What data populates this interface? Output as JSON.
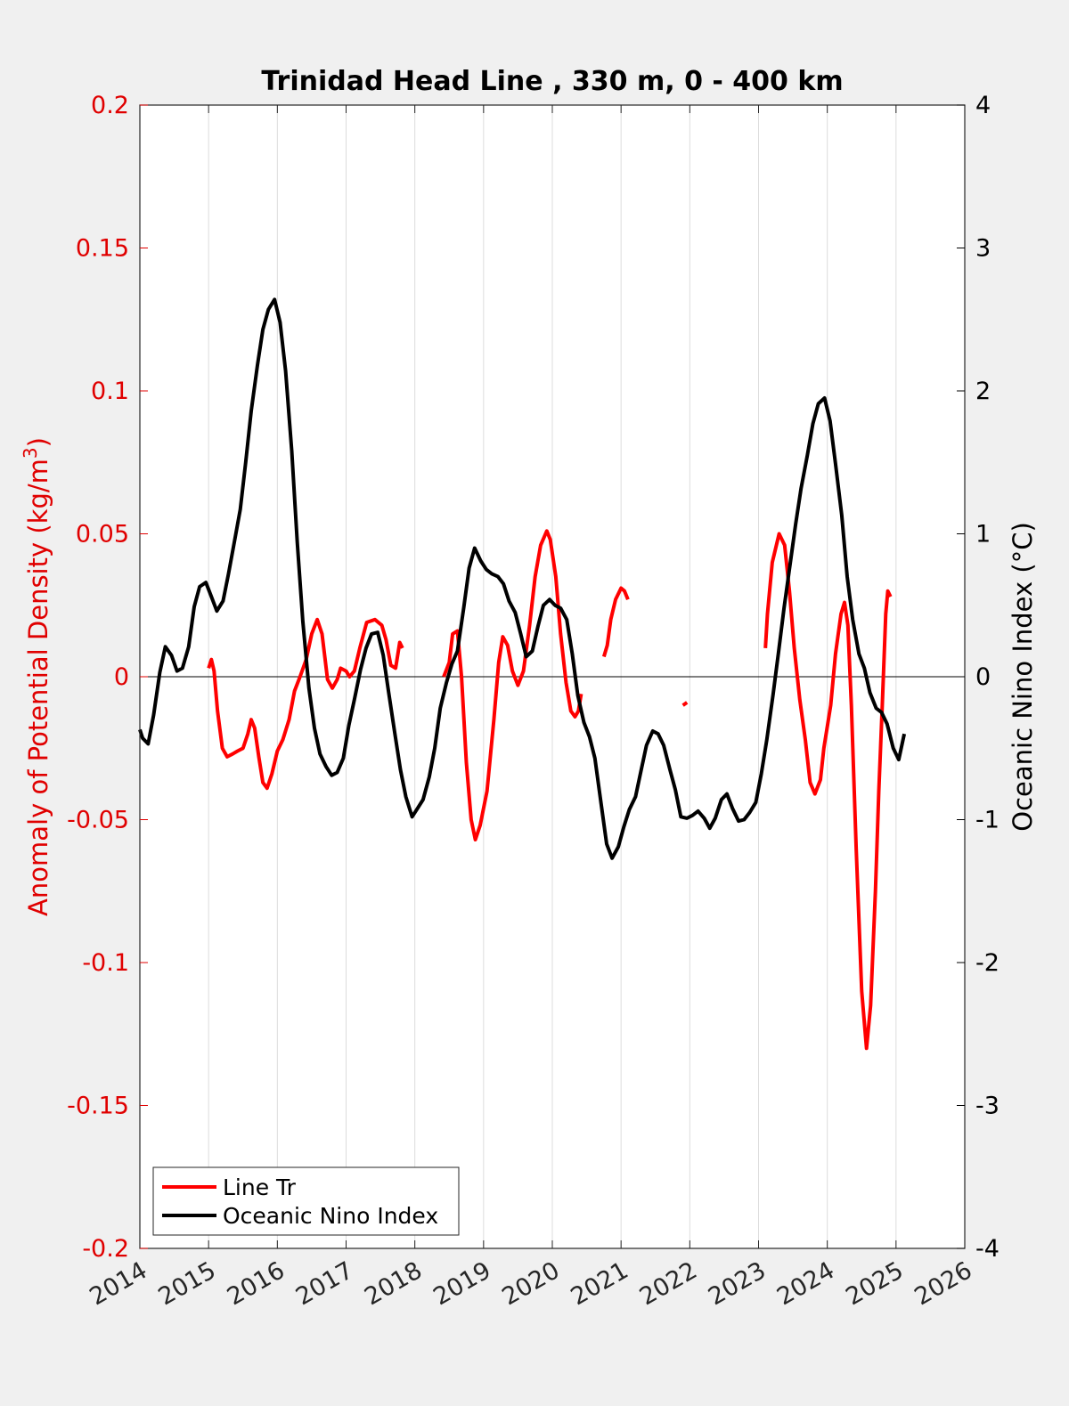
{
  "chart_data": {
    "type": "line",
    "title": "Trinidad Head Line , 330 m, 0 - 400 km",
    "xlabel": "",
    "ylabel_left": "Anomaly of Potential Density (kg/m",
    "ylabel_left_sup": "3",
    "ylabel_left_close": ")",
    "ylabel_right": "Oceanic Nino Index (°C)",
    "xlim": [
      2014,
      2026
    ],
    "ylim_left": [
      -0.2,
      0.2
    ],
    "ylim_right": [
      -4,
      4
    ],
    "x_ticks": [
      "2014",
      "2015",
      "2016",
      "2017",
      "2018",
      "2019",
      "2020",
      "2021",
      "2022",
      "2023",
      "2024",
      "2025",
      "2026"
    ],
    "y_ticks_left": [
      "0.2",
      "0.15",
      "0.1",
      "0.05",
      "0",
      "-0.05",
      "-0.1",
      "-0.15",
      "-0.2"
    ],
    "y_ticks_right": [
      "4",
      "3",
      "2",
      "1",
      "0",
      "-1",
      "-2",
      "-3",
      "-4"
    ],
    "grid": "vertical",
    "legend_position": "bottom-left",
    "colors": {
      "line_tr": "#ff0000",
      "oni": "#000000",
      "left_axis": "#e00000",
      "right_axis": "#000000"
    },
    "series": [
      {
        "name": "Line Tr",
        "axis": "left",
        "segments": [
          [
            [
              2015.0,
              0.003
            ],
            [
              2015.04,
              0.006
            ],
            [
              2015.08,
              0.002
            ],
            [
              2015.13,
              -0.012
            ],
            [
              2015.2,
              -0.025
            ],
            [
              2015.27,
              -0.028
            ],
            [
              2015.35,
              -0.027
            ],
            [
              2015.42,
              -0.026
            ],
            [
              2015.5,
              -0.025
            ],
            [
              2015.57,
              -0.02
            ],
            [
              2015.62,
              -0.015
            ],
            [
              2015.67,
              -0.018
            ],
            [
              2015.73,
              -0.028
            ],
            [
              2015.79,
              -0.037
            ],
            [
              2015.85,
              -0.039
            ],
            [
              2015.92,
              -0.034
            ],
            [
              2016.0,
              -0.026
            ],
            [
              2016.08,
              -0.022
            ],
            [
              2016.17,
              -0.015
            ],
            [
              2016.25,
              -0.005
            ],
            [
              2016.33,
              0.0
            ],
            [
              2016.42,
              0.006
            ],
            [
              2016.5,
              0.015
            ],
            [
              2016.58,
              0.02
            ],
            [
              2016.65,
              0.015
            ],
            [
              2016.73,
              -0.001
            ],
            [
              2016.8,
              -0.004
            ],
            [
              2016.87,
              -0.001
            ],
            [
              2016.92,
              0.003
            ],
            [
              2017.0,
              0.002
            ],
            [
              2017.05,
              0.0
            ],
            [
              2017.12,
              0.002
            ],
            [
              2017.2,
              0.01
            ],
            [
              2017.3,
              0.019
            ],
            [
              2017.42,
              0.02
            ],
            [
              2017.52,
              0.018
            ],
            [
              2017.58,
              0.013
            ],
            [
              2017.65,
              0.004
            ],
            [
              2017.72,
              0.003
            ],
            [
              2017.78,
              0.012
            ],
            [
              2017.82,
              0.01
            ]
          ],
          [
            [
              2018.42,
              0.0
            ],
            [
              2018.5,
              0.005
            ],
            [
              2018.55,
              0.015
            ],
            [
              2018.62,
              0.016
            ],
            [
              2018.68,
              0.0
            ],
            [
              2018.75,
              -0.03
            ],
            [
              2018.82,
              -0.05
            ],
            [
              2018.88,
              -0.057
            ],
            [
              2018.95,
              -0.052
            ],
            [
              2019.05,
              -0.04
            ],
            [
              2019.15,
              -0.015
            ],
            [
              2019.22,
              0.005
            ],
            [
              2019.28,
              0.014
            ],
            [
              2019.35,
              0.011
            ],
            [
              2019.42,
              0.002
            ],
            [
              2019.5,
              -0.003
            ],
            [
              2019.58,
              0.002
            ],
            [
              2019.67,
              0.018
            ],
            [
              2019.75,
              0.035
            ],
            [
              2019.83,
              0.046
            ],
            [
              2019.92,
              0.051
            ],
            [
              2019.97,
              0.048
            ],
            [
              2020.05,
              0.035
            ],
            [
              2020.12,
              0.015
            ],
            [
              2020.2,
              -0.002
            ],
            [
              2020.27,
              -0.012
            ],
            [
              2020.33,
              -0.014
            ],
            [
              2020.38,
              -0.012
            ],
            [
              2020.42,
              -0.006
            ]
          ],
          [
            [
              2020.75,
              0.007
            ],
            [
              2020.8,
              0.011
            ],
            [
              2020.85,
              0.02
            ],
            [
              2020.92,
              0.027
            ],
            [
              2021.0,
              0.031
            ],
            [
              2021.05,
              0.03
            ],
            [
              2021.1,
              0.027
            ]
          ],
          [
            [
              2021.9,
              -0.01
            ],
            [
              2021.96,
              -0.009
            ]
          ],
          [
            [
              2023.1,
              0.01
            ],
            [
              2023.13,
              0.022
            ],
            [
              2023.2,
              0.04
            ],
            [
              2023.3,
              0.05
            ],
            [
              2023.38,
              0.046
            ],
            [
              2023.45,
              0.03
            ],
            [
              2023.52,
              0.01
            ],
            [
              2023.6,
              -0.008
            ],
            [
              2023.68,
              -0.022
            ],
            [
              2023.75,
              -0.037
            ],
            [
              2023.82,
              -0.041
            ],
            [
              2023.9,
              -0.036
            ],
            [
              2023.95,
              -0.025
            ],
            [
              2024.05,
              -0.01
            ],
            [
              2024.12,
              0.008
            ],
            [
              2024.2,
              0.022
            ],
            [
              2024.25,
              0.026
            ],
            [
              2024.3,
              0.018
            ],
            [
              2024.35,
              -0.01
            ],
            [
              2024.42,
              -0.06
            ],
            [
              2024.5,
              -0.11
            ],
            [
              2024.57,
              -0.13
            ],
            [
              2024.63,
              -0.115
            ],
            [
              2024.7,
              -0.075
            ],
            [
              2024.75,
              -0.04
            ],
            [
              2024.8,
              -0.01
            ],
            [
              2024.85,
              0.022
            ],
            [
              2024.88,
              0.03
            ],
            [
              2024.92,
              0.028
            ]
          ]
        ]
      },
      {
        "name": "Oceanic Nino Index",
        "axis": "right",
        "segments": [
          [
            [
              2014.0,
              -0.37
            ],
            [
              2014.04,
              -0.43
            ],
            [
              2014.12,
              -0.47
            ],
            [
              2014.2,
              -0.27
            ],
            [
              2014.29,
              0.03
            ],
            [
              2014.37,
              0.21
            ],
            [
              2014.46,
              0.15
            ],
            [
              2014.54,
              0.04
            ],
            [
              2014.62,
              0.06
            ],
            [
              2014.71,
              0.21
            ],
            [
              2014.79,
              0.49
            ],
            [
              2014.87,
              0.63
            ],
            [
              2014.96,
              0.66
            ],
            [
              2015.04,
              0.56
            ],
            [
              2015.12,
              0.46
            ],
            [
              2015.21,
              0.53
            ],
            [
              2015.29,
              0.72
            ],
            [
              2015.37,
              0.93
            ],
            [
              2015.46,
              1.17
            ],
            [
              2015.54,
              1.5
            ],
            [
              2015.62,
              1.86
            ],
            [
              2015.71,
              2.18
            ],
            [
              2015.79,
              2.43
            ],
            [
              2015.87,
              2.57
            ],
            [
              2015.96,
              2.64
            ],
            [
              2016.04,
              2.48
            ],
            [
              2016.12,
              2.14
            ],
            [
              2016.21,
              1.58
            ],
            [
              2016.29,
              0.94
            ],
            [
              2016.37,
              0.39
            ],
            [
              2016.46,
              -0.08
            ],
            [
              2016.54,
              -0.36
            ],
            [
              2016.62,
              -0.54
            ],
            [
              2016.71,
              -0.63
            ],
            [
              2016.79,
              -0.69
            ],
            [
              2016.87,
              -0.67
            ],
            [
              2016.96,
              -0.57
            ],
            [
              2017.04,
              -0.34
            ],
            [
              2017.12,
              -0.16
            ],
            [
              2017.21,
              0.05
            ],
            [
              2017.29,
              0.2
            ],
            [
              2017.37,
              0.3
            ],
            [
              2017.46,
              0.31
            ],
            [
              2017.54,
              0.15
            ],
            [
              2017.62,
              -0.11
            ],
            [
              2017.71,
              -0.4
            ],
            [
              2017.79,
              -0.65
            ],
            [
              2017.87,
              -0.84
            ],
            [
              2017.96,
              -0.98
            ],
            [
              2018.04,
              -0.92
            ],
            [
              2018.12,
              -0.86
            ],
            [
              2018.21,
              -0.7
            ],
            [
              2018.29,
              -0.5
            ],
            [
              2018.37,
              -0.22
            ],
            [
              2018.46,
              -0.04
            ],
            [
              2018.54,
              0.09
            ],
            [
              2018.62,
              0.18
            ],
            [
              2018.71,
              0.48
            ],
            [
              2018.79,
              0.76
            ],
            [
              2018.87,
              0.9
            ],
            [
              2018.96,
              0.81
            ],
            [
              2019.04,
              0.75
            ],
            [
              2019.12,
              0.72
            ],
            [
              2019.21,
              0.7
            ],
            [
              2019.29,
              0.65
            ],
            [
              2019.37,
              0.53
            ],
            [
              2019.46,
              0.45
            ],
            [
              2019.54,
              0.3
            ],
            [
              2019.62,
              0.14
            ],
            [
              2019.71,
              0.18
            ],
            [
              2019.79,
              0.35
            ],
            [
              2019.87,
              0.5
            ],
            [
              2019.96,
              0.54
            ],
            [
              2020.04,
              0.5
            ],
            [
              2020.12,
              0.48
            ],
            [
              2020.21,
              0.4
            ],
            [
              2020.29,
              0.16
            ],
            [
              2020.37,
              -0.13
            ],
            [
              2020.46,
              -0.32
            ],
            [
              2020.54,
              -0.42
            ],
            [
              2020.62,
              -0.57
            ],
            [
              2020.71,
              -0.89
            ],
            [
              2020.79,
              -1.17
            ],
            [
              2020.87,
              -1.27
            ],
            [
              2020.96,
              -1.19
            ],
            [
              2021.04,
              -1.05
            ],
            [
              2021.12,
              -0.93
            ],
            [
              2021.21,
              -0.84
            ],
            [
              2021.29,
              -0.66
            ],
            [
              2021.37,
              -0.48
            ],
            [
              2021.46,
              -0.38
            ],
            [
              2021.54,
              -0.4
            ],
            [
              2021.62,
              -0.48
            ],
            [
              2021.71,
              -0.65
            ],
            [
              2021.79,
              -0.79
            ],
            [
              2021.87,
              -0.98
            ],
            [
              2021.96,
              -0.99
            ],
            [
              2022.04,
              -0.97
            ],
            [
              2022.12,
              -0.94
            ],
            [
              2022.21,
              -0.99
            ],
            [
              2022.29,
              -1.06
            ],
            [
              2022.37,
              -0.99
            ],
            [
              2022.46,
              -0.86
            ],
            [
              2022.54,
              -0.82
            ],
            [
              2022.62,
              -0.92
            ],
            [
              2022.71,
              -1.01
            ],
            [
              2022.79,
              -1.0
            ],
            [
              2022.87,
              -0.95
            ],
            [
              2022.96,
              -0.88
            ],
            [
              2023.04,
              -0.68
            ],
            [
              2023.12,
              -0.44
            ],
            [
              2023.21,
              -0.13
            ],
            [
              2023.29,
              0.17
            ],
            [
              2023.37,
              0.48
            ],
            [
              2023.46,
              0.79
            ],
            [
              2023.54,
              1.07
            ],
            [
              2023.62,
              1.32
            ],
            [
              2023.71,
              1.55
            ],
            [
              2023.79,
              1.77
            ],
            [
              2023.87,
              1.91
            ],
            [
              2023.96,
              1.95
            ],
            [
              2024.04,
              1.79
            ],
            [
              2024.12,
              1.49
            ],
            [
              2024.21,
              1.13
            ],
            [
              2024.29,
              0.7
            ],
            [
              2024.37,
              0.4
            ],
            [
              2024.46,
              0.16
            ],
            [
              2024.54,
              0.06
            ],
            [
              2024.62,
              -0.11
            ],
            [
              2024.71,
              -0.22
            ],
            [
              2024.79,
              -0.25
            ],
            [
              2024.87,
              -0.33
            ],
            [
              2024.96,
              -0.5
            ],
            [
              2025.04,
              -0.58
            ],
            [
              2025.12,
              -0.4
            ]
          ]
        ]
      }
    ]
  }
}
